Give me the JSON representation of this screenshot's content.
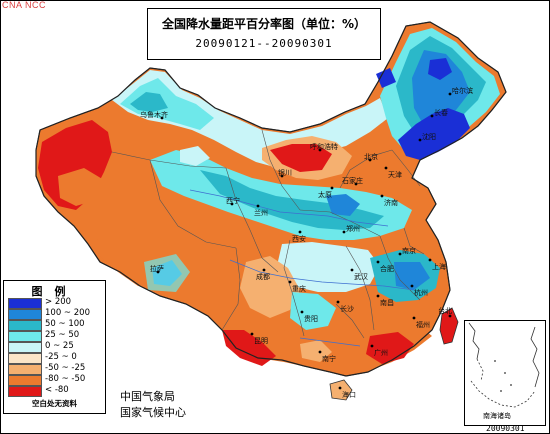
{
  "corner_tag": "CNA NCC",
  "title": {
    "main": "全国降水量距平百分率图（单位：%）",
    "period": "20090121--20090301"
  },
  "legend": {
    "title": "图例",
    "items": [
      {
        "label": "> 200",
        "color": "#1a2fd6"
      },
      {
        "label": "100 ~ 200",
        "color": "#1f86d9"
      },
      {
        "label": "50 ~ 100",
        "color": "#2bb8c9"
      },
      {
        "label": "25 ~ 50",
        "color": "#6ee8ea"
      },
      {
        "label": "0 ~ 25",
        "color": "#c9f5f8"
      },
      {
        "label": "-25 ~ 0",
        "color": "#fbe5c8"
      },
      {
        "label": "-50 ~ -25",
        "color": "#f5b070"
      },
      {
        "label": "-80 ~ -50",
        "color": "#ec7a2e"
      },
      {
        "label": "< -80",
        "color": "#e01818"
      }
    ],
    "note": "空白处无资料"
  },
  "agency": {
    "line1": "中国气象局",
    "line2": "国家气候中心"
  },
  "inset_label": "南海诸岛",
  "date_stamp": "20090301",
  "cities": [
    {
      "id": "wulumuqi",
      "name": "乌鲁木齐"
    },
    {
      "id": "lasa",
      "name": "拉萨"
    },
    {
      "id": "xining",
      "name": "西宁"
    },
    {
      "id": "lanzhou",
      "name": "兰州"
    },
    {
      "id": "yinchuan",
      "name": "银川"
    },
    {
      "id": "huhehaote",
      "name": "呼和浩特"
    },
    {
      "id": "beijing",
      "name": "北京"
    },
    {
      "id": "tianjin",
      "name": "天津"
    },
    {
      "id": "shijiazhuang",
      "name": "石家庄"
    },
    {
      "id": "taiyuan",
      "name": "太原"
    },
    {
      "id": "jinan",
      "name": "济南"
    },
    {
      "id": "shenyang",
      "name": "沈阳"
    },
    {
      "id": "changchun",
      "name": "长春"
    },
    {
      "id": "haerbin",
      "name": "哈尔滨"
    },
    {
      "id": "xian",
      "name": "西安"
    },
    {
      "id": "zhengzhou",
      "name": "郑州"
    },
    {
      "id": "chengdu",
      "name": "成都"
    },
    {
      "id": "chongqing",
      "name": "重庆"
    },
    {
      "id": "wuhan",
      "name": "武汉"
    },
    {
      "id": "hefei",
      "name": "合肥"
    },
    {
      "id": "nanjing",
      "name": "南京"
    },
    {
      "id": "shanghai",
      "name": "上海"
    },
    {
      "id": "hangzhou",
      "name": "杭州"
    },
    {
      "id": "changsha",
      "name": "长沙"
    },
    {
      "id": "nanchang",
      "name": "南昌"
    },
    {
      "id": "guiyang",
      "name": "贵阳"
    },
    {
      "id": "kunming",
      "name": "昆明"
    },
    {
      "id": "nanning",
      "name": "南宁"
    },
    {
      "id": "guangzhou",
      "name": "广州"
    },
    {
      "id": "fuzhou",
      "name": "福州"
    },
    {
      "id": "taibei",
      "name": "台北"
    },
    {
      "id": "haikou",
      "name": "海口"
    }
  ]
}
